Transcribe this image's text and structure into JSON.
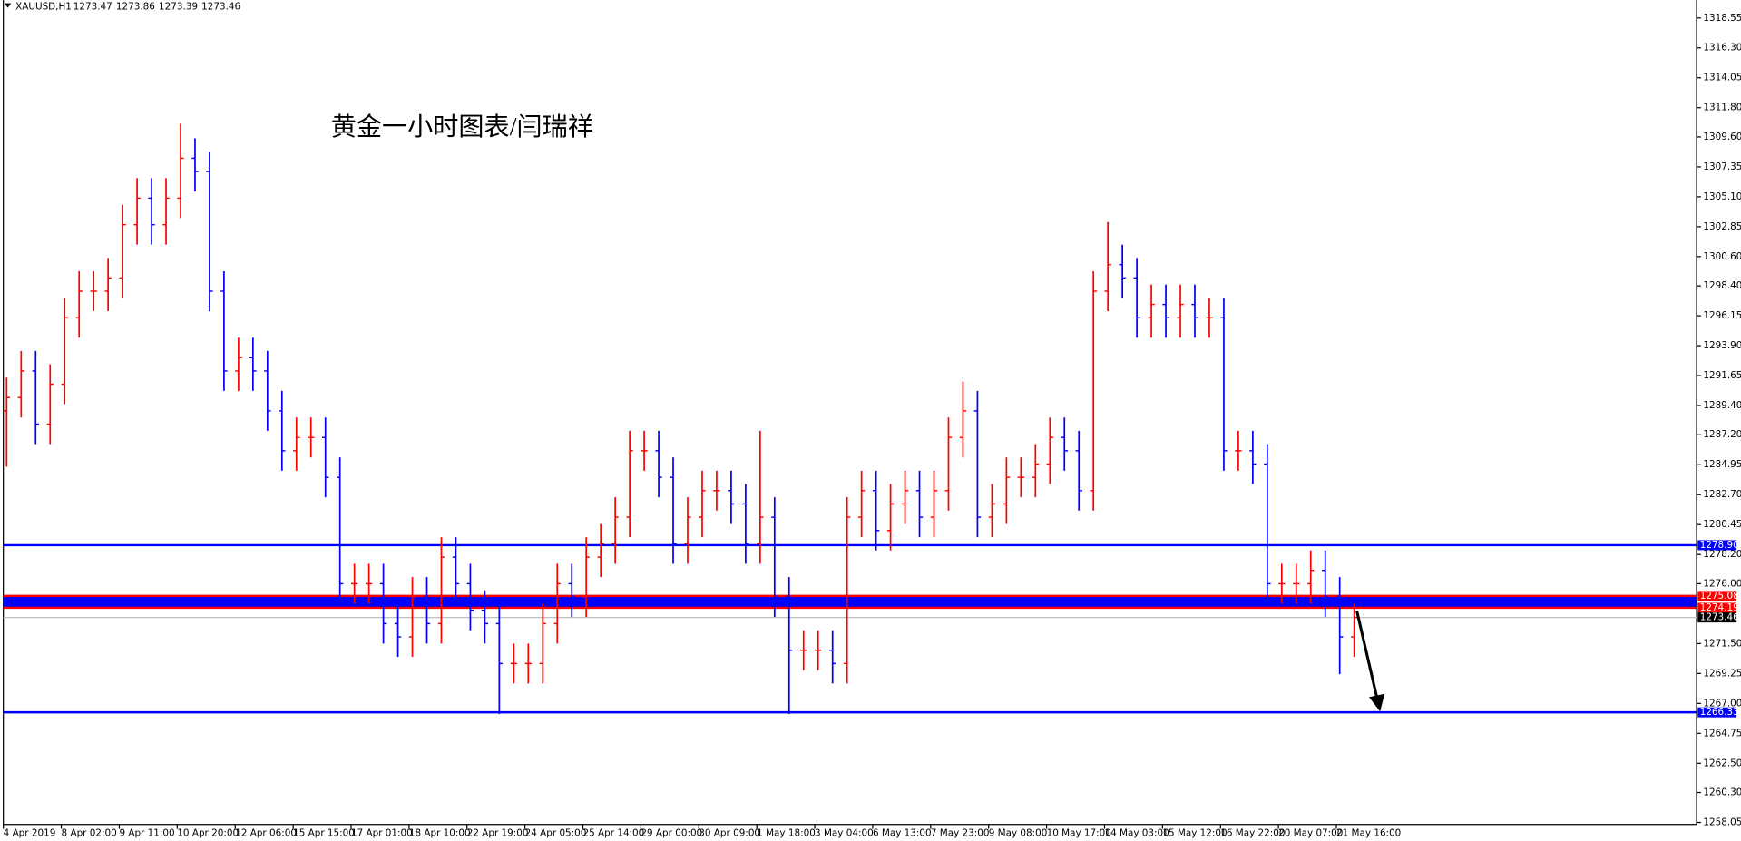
{
  "chart_data": {
    "type": "ohlc",
    "symbol": "XAUUSD,H1",
    "quote": [
      1273.47,
      1273.86,
      1273.39,
      1273.46
    ],
    "annotation": "黄金一小时图表/闫瑞祥",
    "up_color": "#ff0000",
    "down_color": "#0000ff",
    "categories": [
      "4 Apr 2019",
      "8 Apr 02:00",
      "9 Apr 11:00",
      "10 Apr 20:00",
      "12 Apr 06:00",
      "15 Apr 15:00",
      "17 Apr 01:00",
      "18 Apr 10:00",
      "22 Apr 19:00",
      "24 Apr 05:00",
      "25 Apr 14:00",
      "29 Apr 00:00",
      "30 Apr 09:00",
      "1 May 18:00",
      "3 May 04:00",
      "6 May 13:00",
      "7 May 23:00",
      "9 May 08:00",
      "10 May 17:00",
      "14 May 03:00",
      "15 May 12:00",
      "16 May 22:00",
      "20 May 07:00",
      "21 May 16:00"
    ],
    "open": [
      1289,
      1290,
      1292,
      1288,
      1291,
      1296,
      1298,
      1298,
      1299,
      1303,
      1305,
      1303,
      1305,
      1308,
      1307,
      1298,
      1292,
      1293,
      1292,
      1289,
      1286,
      1287,
      1287,
      1284,
      1276,
      1276,
      1276,
      1273,
      1272,
      1275,
      1273,
      1278,
      1276,
      1274,
      1273,
      1270,
      1270,
      1270,
      1273,
      1276,
      1275,
      1278,
      1279,
      1281,
      1286,
      1286,
      1284,
      1279,
      1281,
      1283,
      1283,
      1282,
      1279,
      1281,
      1275,
      1271,
      1271,
      1271,
      1270,
      1281,
      1283,
      1280,
      1282,
      1283,
      1281,
      1283,
      1287,
      1289,
      1281,
      1282,
      1284,
      1284,
      1285,
      1287,
      1286,
      1283,
      1298,
      1300,
      1299,
      1296,
      1297,
      1296,
      1297,
      1296,
      1296,
      1286,
      1286,
      1285,
      1276,
      1276,
      1276,
      1277,
      1275,
      1272
    ],
    "high": [
      1291.5,
      1293.5,
      1293.5,
      1292.5,
      1297.5,
      1299.5,
      1299.5,
      1300.5,
      1304.5,
      1306.5,
      1306.5,
      1306.5,
      1310.6,
      1309.5,
      1308.5,
      1299.5,
      1294.5,
      1294.5,
      1293.5,
      1290.5,
      1288.5,
      1288.5,
      1288.5,
      1285.5,
      1277.5,
      1277.5,
      1277.5,
      1274.5,
      1276.5,
      1276.5,
      1279.5,
      1279.5,
      1277.5,
      1275.5,
      1274.5,
      1271.5,
      1271.5,
      1274.5,
      1277.5,
      1277.5,
      1279.5,
      1280.5,
      1282.5,
      1287.5,
      1287.5,
      1287.5,
      1285.5,
      1282.5,
      1284.5,
      1284.5,
      1284.5,
      1283.5,
      1287.5,
      1282.5,
      1276.5,
      1272.5,
      1272.5,
      1272.5,
      1282.5,
      1284.5,
      1284.5,
      1283.5,
      1284.5,
      1284.5,
      1284.5,
      1288.5,
      1291.2,
      1290.5,
      1283.5,
      1285.5,
      1285.5,
      1286.5,
      1288.5,
      1288.5,
      1287.5,
      1299.5,
      1303.2,
      1301.5,
      1300.5,
      1298.5,
      1298.5,
      1298.5,
      1298.5,
      1297.5,
      1297.5,
      1287.5,
      1287.5,
      1286.5,
      1277.5,
      1277.5,
      1278.5,
      1278.5,
      1276.5,
      1274.5
    ],
    "low": [
      1284.8,
      1288.5,
      1286.5,
      1286.5,
      1289.5,
      1294.5,
      1296.5,
      1296.5,
      1297.5,
      1301.5,
      1301.5,
      1301.5,
      1303.5,
      1305.5,
      1296.5,
      1290.5,
      1290.5,
      1290.5,
      1287.5,
      1284.5,
      1284.5,
      1285.5,
      1282.5,
      1274.5,
      1274.5,
      1274.5,
      1271.5,
      1270.5,
      1270.5,
      1271.5,
      1271.5,
      1274.5,
      1272.5,
      1271.5,
      1266.2,
      1268.5,
      1268.5,
      1268.5,
      1271.5,
      1273.5,
      1273.5,
      1276.5,
      1277.5,
      1279.5,
      1284.5,
      1282.5,
      1277.5,
      1277.5,
      1279.5,
      1281.5,
      1280.5,
      1277.5,
      1277.5,
      1273.5,
      1266.2,
      1269.5,
      1269.5,
      1268.5,
      1268.5,
      1279.5,
      1278.5,
      1278.5,
      1280.5,
      1279.5,
      1279.5,
      1281.5,
      1285.5,
      1279.5,
      1279.5,
      1280.5,
      1282.5,
      1282.5,
      1283.5,
      1284.5,
      1281.5,
      1281.5,
      1296.5,
      1297.5,
      1294.5,
      1294.5,
      1294.5,
      1294.5,
      1294.5,
      1294.5,
      1284.5,
      1284.5,
      1283.5,
      1274.5,
      1274.5,
      1274.5,
      1274.5,
      1273.5,
      1269.2,
      1270.5
    ],
    "close": [
      1290,
      1292,
      1288,
      1291,
      1296,
      1298,
      1298,
      1299,
      1303,
      1305,
      1303,
      1305,
      1308,
      1307,
      1298,
      1292,
      1293,
      1292,
      1289,
      1286,
      1287,
      1287,
      1284,
      1276,
      1276,
      1276,
      1273,
      1272,
      1275,
      1273,
      1278,
      1276,
      1274,
      1273,
      1270,
      1270,
      1270,
      1273,
      1276,
      1275,
      1278,
      1279,
      1281,
      1286,
      1286,
      1284,
      1279,
      1281,
      1283,
      1283,
      1282,
      1279,
      1281,
      1275,
      1271,
      1271,
      1271,
      1270,
      1281,
      1283,
      1280,
      1282,
      1283,
      1281,
      1283,
      1287,
      1289,
      1281,
      1282,
      1284,
      1284,
      1285,
      1287,
      1286,
      1283,
      1298,
      1300,
      1299,
      1296,
      1297,
      1296,
      1297,
      1296,
      1296,
      1286,
      1286,
      1285,
      1276,
      1276,
      1276,
      1277,
      1275,
      1272,
      1273.46
    ],
    "ylim": [
      1257.9,
      1319.9
    ],
    "yticks": [
      1318.55,
      {
        "value": 1316.3,
        "label": "1316.30"
      },
      1314.05,
      {
        "value": 1311.8,
        "label": "1311.80"
      },
      {
        "value": 1309.6,
        "label": "1309.60"
      },
      1307.35,
      {
        "value": 1305.1,
        "label": "1305.10"
      },
      1302.85,
      {
        "value": 1300.6,
        "label": "1300.60"
      },
      {
        "value": 1298.4,
        "label": "1298.40"
      },
      1296.15,
      {
        "value": 1293.9,
        "label": "1293.90"
      },
      1291.65,
      {
        "value": 1289.4,
        "label": "1289.40"
      },
      {
        "value": 1287.2,
        "label": "1287.20"
      },
      1284.95,
      {
        "value": 1282.7,
        "label": "1282.70"
      },
      1280.45,
      {
        "value": 1278.2,
        "label": "1278.20"
      },
      {
        "value": 1276,
        "label": "1276.00"
      },
      {
        "value": 1271.5,
        "label": "1271.50"
      },
      1269.25,
      {
        "value": 1267,
        "label": "1267.00"
      },
      1264.75,
      {
        "value": 1262.5,
        "label": "1262.50"
      },
      {
        "value": 1260.3,
        "label": "1260.30"
      },
      1258.05
    ],
    "hlines": [
      {
        "value": 1278.9,
        "label": "1278.90",
        "color": "#0000ff"
      },
      {
        "value": 1266.33,
        "label": "1266.33",
        "color": "#0000ff"
      }
    ],
    "band": {
      "top": {
        "value": 1275.08,
        "label": "1275.08"
      },
      "bottom": {
        "value": 1274.19,
        "label": "1274.19"
      },
      "edge": "#ff0000",
      "fill": "#0000ff"
    },
    "price_line": {
      "value": 1273.46,
      "label": "1273.46",
      "color": "#c0c0c0"
    }
  }
}
